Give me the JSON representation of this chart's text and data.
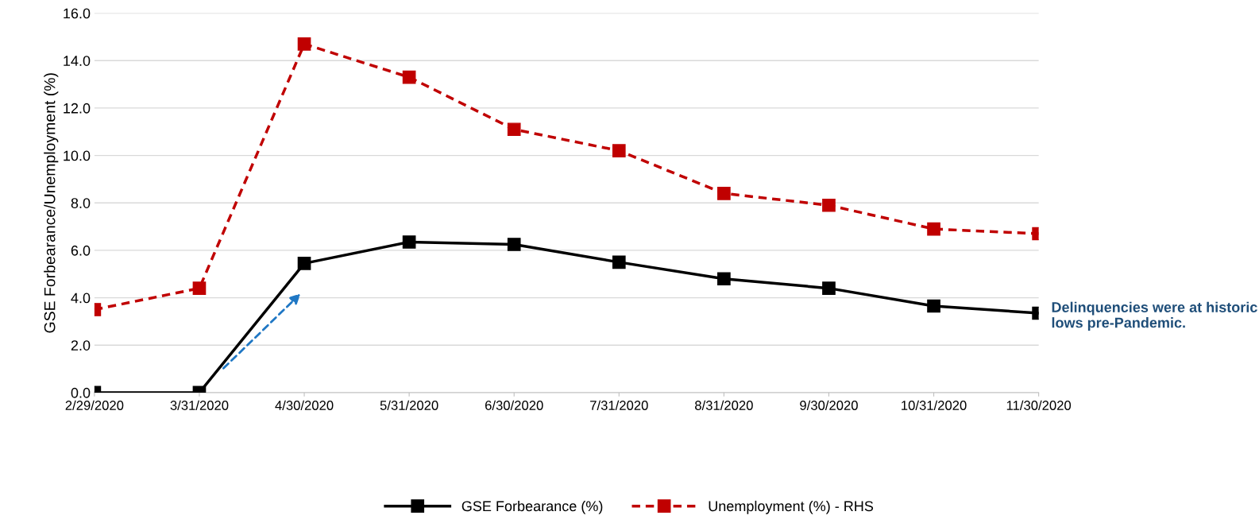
{
  "chart_data": {
    "type": "line",
    "ylabel": "GSE Forbearance/Unemployment (%)",
    "categories": [
      "2/29/2020",
      "3/31/2020",
      "4/30/2020",
      "5/31/2020",
      "6/30/2020",
      "7/31/2020",
      "8/31/2020",
      "9/30/2020",
      "10/31/2020",
      "11/30/2020"
    ],
    "series": [
      {
        "name": "GSE Forbearance (%)",
        "color": "#000000",
        "line_style": "solid",
        "values": [
          0.0,
          0.0,
          5.45,
          6.35,
          6.25,
          5.5,
          4.8,
          4.4,
          3.65,
          3.35
        ]
      },
      {
        "name": "Unemployment (%) - RHS",
        "color": "#c00000",
        "line_style": "dashed",
        "values": [
          3.5,
          4.4,
          14.7,
          13.3,
          11.1,
          10.2,
          8.4,
          7.9,
          6.9,
          6.7
        ]
      }
    ],
    "ylim": [
      0,
      16
    ],
    "yticks": [
      {
        "value": 0,
        "label": "0.0"
      },
      {
        "value": 2,
        "label": "2.0"
      },
      {
        "value": 4,
        "label": "4.0"
      },
      {
        "value": 6,
        "label": "6.0"
      },
      {
        "value": 8,
        "label": "8.0"
      },
      {
        "value": 10,
        "label": "10.0"
      },
      {
        "value": 12,
        "label": "12.0"
      },
      {
        "value": 14,
        "label": "14.0"
      },
      {
        "value": 16,
        "label": "16.0"
      }
    ],
    "grid": "y",
    "legend": "bottom",
    "marker": "square",
    "annotations": [
      "Delinquencies were at historic lows pre-Pandemic."
    ]
  }
}
